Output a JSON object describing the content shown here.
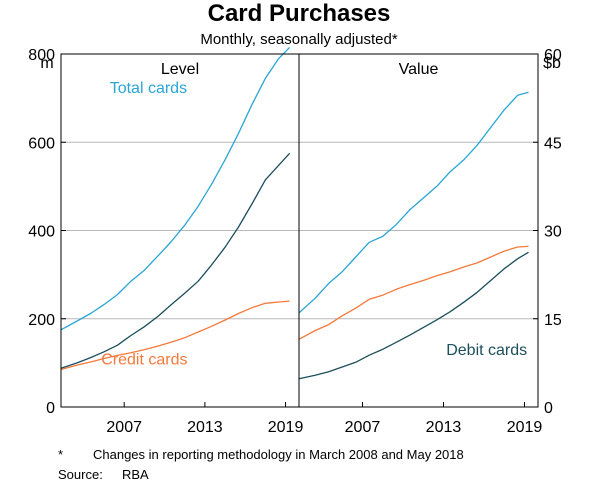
{
  "title": "Card Purchases",
  "subtitle": "Monthly, seasonally adjusted*",
  "left_unit": "m",
  "right_unit": "$b",
  "colors": {
    "total": "#2aa5d6",
    "credit": "#f47a3b",
    "debit": "#1c4e5c"
  },
  "footnotes": [
    {
      "marker": "*",
      "text": "Changes in reporting methodology in March 2008 and May 2018"
    },
    {
      "marker": "Source:",
      "text": "RBA"
    }
  ],
  "chart_data": [
    {
      "type": "line",
      "panel_title": "Level",
      "ylabel": "m",
      "ylim": [
        0,
        800
      ],
      "yticks": [
        0,
        200,
        400,
        600,
        800
      ],
      "xlim": [
        2002.8,
        2020.5
      ],
      "xticks": [
        {
          "value": 2007.5,
          "label": "2007"
        },
        {
          "value": 2013.5,
          "label": "2013"
        },
        {
          "value": 2019.5,
          "label": "2019"
        }
      ],
      "grid": true,
      "x": [
        2002.8,
        2004,
        2005,
        2006,
        2007,
        2008,
        2009,
        2010,
        2011,
        2012,
        2013,
        2014,
        2015,
        2016,
        2017,
        2018,
        2019,
        2019.8
      ],
      "series": [
        {
          "name": "Total cards",
          "color_key": "total",
          "label_at": [
            2009.3,
            712
          ],
          "values": [
            175,
            195,
            212,
            232,
            255,
            285,
            310,
            342,
            375,
            412,
            455,
            505,
            560,
            620,
            685,
            745,
            790,
            815
          ]
        },
        {
          "name": "Credit cards",
          "color_key": "credit",
          "label_at": [
            2009.0,
            96
          ],
          "values": [
            85,
            95,
            102,
            110,
            117,
            123,
            130,
            138,
            147,
            157,
            170,
            183,
            197,
            212,
            225,
            235,
            238,
            240
          ]
        },
        {
          "name": "",
          "color_key": "debit",
          "values": [
            88,
            100,
            112,
            125,
            140,
            162,
            182,
            205,
            232,
            258,
            285,
            322,
            362,
            408,
            460,
            515,
            548,
            575
          ]
        }
      ]
    },
    {
      "type": "line",
      "panel_title": "Value",
      "ylabel": "$b",
      "ylim": [
        0,
        60
      ],
      "yticks": [
        0,
        15,
        30,
        45,
        60
      ],
      "xlim": [
        2002.8,
        2020.5
      ],
      "xticks": [
        {
          "value": 2007.5,
          "label": "2007"
        },
        {
          "value": 2013.5,
          "label": "2013"
        },
        {
          "value": 2019.5,
          "label": "2019"
        }
      ],
      "grid": true,
      "x": [
        2002.8,
        2004,
        2005,
        2006,
        2007,
        2008,
        2009,
        2010,
        2011,
        2012,
        2013,
        2014,
        2015,
        2016,
        2017,
        2018,
        2019,
        2019.8
      ],
      "series": [
        {
          "name": "",
          "color_key": "total",
          "values": [
            16.0,
            18.5,
            21.0,
            23.0,
            25.5,
            28.0,
            29.0,
            31.0,
            33.5,
            35.5,
            37.5,
            40.0,
            42.0,
            44.5,
            47.5,
            50.5,
            53.0,
            53.5
          ]
        },
        {
          "name": "",
          "color_key": "credit",
          "values": [
            11.5,
            13.0,
            14.0,
            15.5,
            16.8,
            18.3,
            19.0,
            20.0,
            20.8,
            21.5,
            22.3,
            23.0,
            23.8,
            24.5,
            25.5,
            26.5,
            27.2,
            27.3
          ]
        },
        {
          "name": "Debit cards",
          "color_key": "debit",
          "label_at": [
            2016.7,
            8.8
          ],
          "values": [
            4.8,
            5.4,
            6.0,
            6.8,
            7.6,
            8.8,
            9.8,
            11.0,
            12.2,
            13.5,
            14.8,
            16.2,
            17.8,
            19.5,
            21.5,
            23.5,
            25.2,
            26.3
          ]
        }
      ]
    }
  ]
}
